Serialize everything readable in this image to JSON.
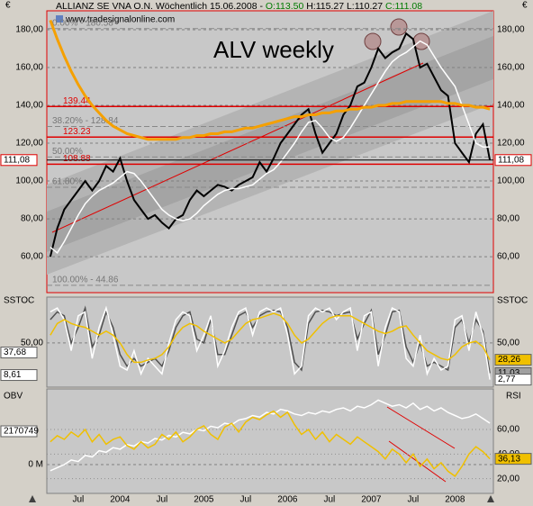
{
  "chart_data": [
    {
      "type": "line",
      "title": "ALV weekly",
      "header": [
        "ALLIANZ SE VNA O.N.  Wöchentlich  15.06.2008 -",
        "O:113.50",
        "H:115.27 L:110.27",
        "C:111.08"
      ],
      "header_colors": [
        "#000000",
        "#007a00",
        "#000000",
        "#007a00"
      ],
      "watermark": "www.tradesignalonline.com",
      "unit": "€",
      "series": [
        {
          "color": "#000000",
          "values": [
            60,
            75,
            85,
            90,
            95,
            100,
            95,
            100,
            108,
            105,
            112,
            100,
            90,
            85,
            80,
            82,
            78,
            75,
            80,
            82,
            90,
            95,
            92,
            95,
            98,
            97,
            95,
            98,
            100,
            102,
            110,
            105,
            112,
            120,
            125,
            130,
            135,
            138,
            125,
            115,
            120,
            125,
            135,
            140,
            150,
            152,
            160,
            170,
            165,
            168,
            170,
            178,
            175,
            160,
            162,
            155,
            148,
            145,
            120,
            115,
            110,
            125,
            130,
            111.08
          ]
        },
        {
          "color": "#ffffff",
          "values": [
            65,
            62,
            68,
            75,
            82,
            88,
            92,
            95,
            97,
            99,
            102,
            105,
            104,
            100,
            95,
            90,
            85,
            82,
            80,
            79,
            80,
            83,
            87,
            90,
            93,
            95,
            96,
            96,
            97,
            98,
            101,
            104,
            106,
            110,
            115,
            120,
            126,
            131,
            132,
            128,
            123,
            121,
            123,
            128,
            134,
            140,
            146,
            152,
            158,
            163,
            166,
            168,
            171,
            174,
            172,
            166,
            160,
            155,
            150,
            140,
            130,
            120,
            118,
            118
          ]
        },
        {
          "color": "#f5a000",
          "values": [
            185,
            175,
            166,
            158,
            151,
            145,
            140,
            136,
            132,
            129,
            127,
            125,
            124,
            123,
            122,
            122,
            122,
            122,
            122,
            123,
            123,
            124,
            124,
            125,
            125,
            126,
            126,
            127,
            128,
            128,
            129,
            130,
            131,
            132,
            133,
            134,
            134,
            135,
            135,
            136,
            136,
            137,
            137,
            138,
            138,
            139,
            139,
            140,
            140,
            141,
            141,
            142,
            142,
            142,
            142,
            142,
            142,
            141,
            141,
            140,
            140,
            139,
            139,
            138
          ]
        }
      ],
      "ylim": [
        41,
        190
      ],
      "yticks": [
        {
          "value": 60,
          "label": "60,00"
        },
        {
          "value": 80,
          "label": "80,00"
        },
        {
          "value": 100,
          "label": "100,00"
        },
        {
          "value": 120,
          "label": "120,00"
        },
        {
          "value": 140,
          "label": "140,00"
        },
        {
          "value": 160,
          "label": "160,00"
        },
        {
          "value": 180,
          "label": "180,00"
        }
      ],
      "levels": [
        139.44,
        123.23,
        108.88
      ],
      "level_color": "#e00000",
      "fib": [
        {
          "value": 180.58,
          "label": "0.00% - 180.58"
        },
        {
          "value": 128.84,
          "label": "38.20% - 128.84"
        },
        {
          "value": 112.72,
          "label": "50.00%"
        },
        {
          "value": 96.7,
          "label": "61.80%"
        },
        {
          "value": 44.86,
          "label": "100.00% - 44.86"
        }
      ],
      "last": {
        "value": 111.08,
        "label": "111,08"
      }
    },
    {
      "type": "line",
      "title": "SSTOC",
      "series": [
        {
          "color": "#505050",
          "values": [
            80,
            90,
            85,
            50,
            70,
            95,
            45,
            60,
            90,
            70,
            35,
            20,
            30,
            20,
            25,
            30,
            20,
            40,
            70,
            85,
            90,
            55,
            50,
            80,
            35,
            35,
            60,
            85,
            90,
            70,
            85,
            90,
            92,
            90,
            70,
            25,
            15,
            75,
            90,
            92,
            90,
            85,
            88,
            90,
            55,
            75,
            92,
            35,
            60,
            90,
            92,
            45,
            25,
            50,
            20,
            25,
            20,
            15,
            70,
            80,
            50,
            80,
            65,
            11.03
          ]
        },
        {
          "color": "#ffffff",
          "values": [
            90,
            95,
            80,
            40,
            85,
            90,
            30,
            70,
            95,
            60,
            20,
            15,
            40,
            10,
            30,
            20,
            10,
            50,
            80,
            90,
            85,
            40,
            60,
            85,
            20,
            40,
            70,
            90,
            95,
            60,
            90,
            95,
            90,
            95,
            60,
            10,
            20,
            85,
            95,
            90,
            95,
            80,
            90,
            95,
            40,
            85,
            90,
            20,
            70,
            95,
            90,
            30,
            20,
            60,
            10,
            30,
            15,
            20,
            80,
            85,
            40,
            90,
            60,
            2.77
          ]
        },
        {
          "color": "#f0c000",
          "values": [
            60,
            75,
            80,
            75,
            72,
            70,
            65,
            60,
            65,
            60,
            50,
            35,
            25,
            25,
            28,
            30,
            35,
            45,
            60,
            70,
            75,
            72,
            65,
            60,
            55,
            50,
            55,
            65,
            75,
            80,
            82,
            85,
            88,
            85,
            75,
            60,
            50,
            55,
            65,
            75,
            82,
            85,
            85,
            85,
            80,
            75,
            70,
            65,
            62,
            65,
            70,
            72,
            60,
            50,
            40,
            35,
            30,
            28,
            35,
            45,
            50,
            52,
            45,
            28.26
          ]
        }
      ],
      "ylim": [
        -7,
        109
      ],
      "yticks": [
        {
          "value": 50,
          "label": "50,00"
        }
      ],
      "left_markers": [
        {
          "value": 37.68,
          "label": "37,68",
          "color": "#ffffff"
        },
        {
          "value": 8.61,
          "label": "8,61",
          "color": "#ffffff"
        }
      ],
      "right_markers": [
        {
          "value": 28.26,
          "label": "28,26",
          "color": "#f0c000"
        },
        {
          "value": 11.03,
          "label": "11,03",
          "color": "#a0a0a0"
        },
        {
          "value": 2.77,
          "label": "2,77",
          "color": "#ffffff"
        }
      ]
    },
    {
      "type": "line",
      "title": "OBV",
      "y2_title": "RSI",
      "categories": [
        null,
        null,
        null,
        null,
        "Jul",
        null,
        null,
        null,
        null,
        null,
        "2004",
        null,
        null,
        null,
        null,
        null,
        "Jul",
        null,
        null,
        null,
        null,
        null,
        "2005",
        null,
        null,
        null,
        null,
        null,
        "Jul",
        null,
        null,
        null,
        null,
        null,
        "2006",
        null,
        null,
        null,
        null,
        null,
        "Jul",
        null,
        null,
        null,
        null,
        null,
        "2007",
        null,
        null,
        null,
        null,
        null,
        "Jul",
        null,
        null,
        null,
        null,
        null,
        "2008",
        null,
        null,
        null,
        null,
        null
      ],
      "series": [
        {
          "color": "#ffffff",
          "values": [
            -400000,
            -200000,
            0,
            300000,
            200000,
            600000,
            500000,
            900000,
            800000,
            1100000,
            1000000,
            1300000,
            1200000,
            1500000,
            1400000,
            1700000,
            1600000,
            1900000,
            1800000,
            2100000,
            2000000,
            2300000,
            2200000,
            2500000,
            2400000,
            2700000,
            2600000,
            2900000,
            3000000,
            3200000,
            3100000,
            3400000,
            3300000,
            3600000,
            3500000,
            3300000,
            3200000,
            3400000,
            3300000,
            3500000,
            3400000,
            3600000,
            3700000,
            3500000,
            3800000,
            3700000,
            3900000,
            4200000,
            4000000,
            3800000,
            3900000,
            3700000,
            4000000,
            3600000,
            3800000,
            3500000,
            3700000,
            3400000,
            3200000,
            3000000,
            3100000,
            3300000,
            3000000,
            2700000
          ]
        },
        {
          "color": "#f0c000",
          "axis": "y2",
          "values": [
            50,
            55,
            52,
            58,
            54,
            60,
            50,
            56,
            48,
            52,
            54,
            47,
            44,
            50,
            45,
            48,
            56,
            52,
            58,
            50,
            54,
            60,
            63,
            56,
            52,
            62,
            65,
            58,
            66,
            70,
            68,
            72,
            75,
            70,
            74,
            64,
            56,
            60,
            52,
            58,
            50,
            56,
            52,
            48,
            54,
            50,
            46,
            42,
            36,
            44,
            40,
            33,
            40,
            30,
            36,
            28,
            33,
            26,
            22,
            30,
            40,
            46,
            42,
            36.13
          ]
        }
      ],
      "ylim": [
        -1880000,
        4930000
      ],
      "yticks": [
        {
          "value": 0,
          "label": "0 M"
        }
      ],
      "left_markers": [
        {
          "value": 2170749,
          "color": "#ffffff"
        }
      ],
      "y2lim": [
        8,
        93
      ],
      "y2ticks": [
        {
          "value": 20,
          "label": "20,00"
        },
        {
          "value": 40,
          "label": "40,00"
        },
        {
          "value": 60,
          "label": "60,00"
        }
      ],
      "right_markers": [
        {
          "value": 36.13,
          "label": "36,13",
          "color": "#f0c000"
        }
      ]
    }
  ]
}
